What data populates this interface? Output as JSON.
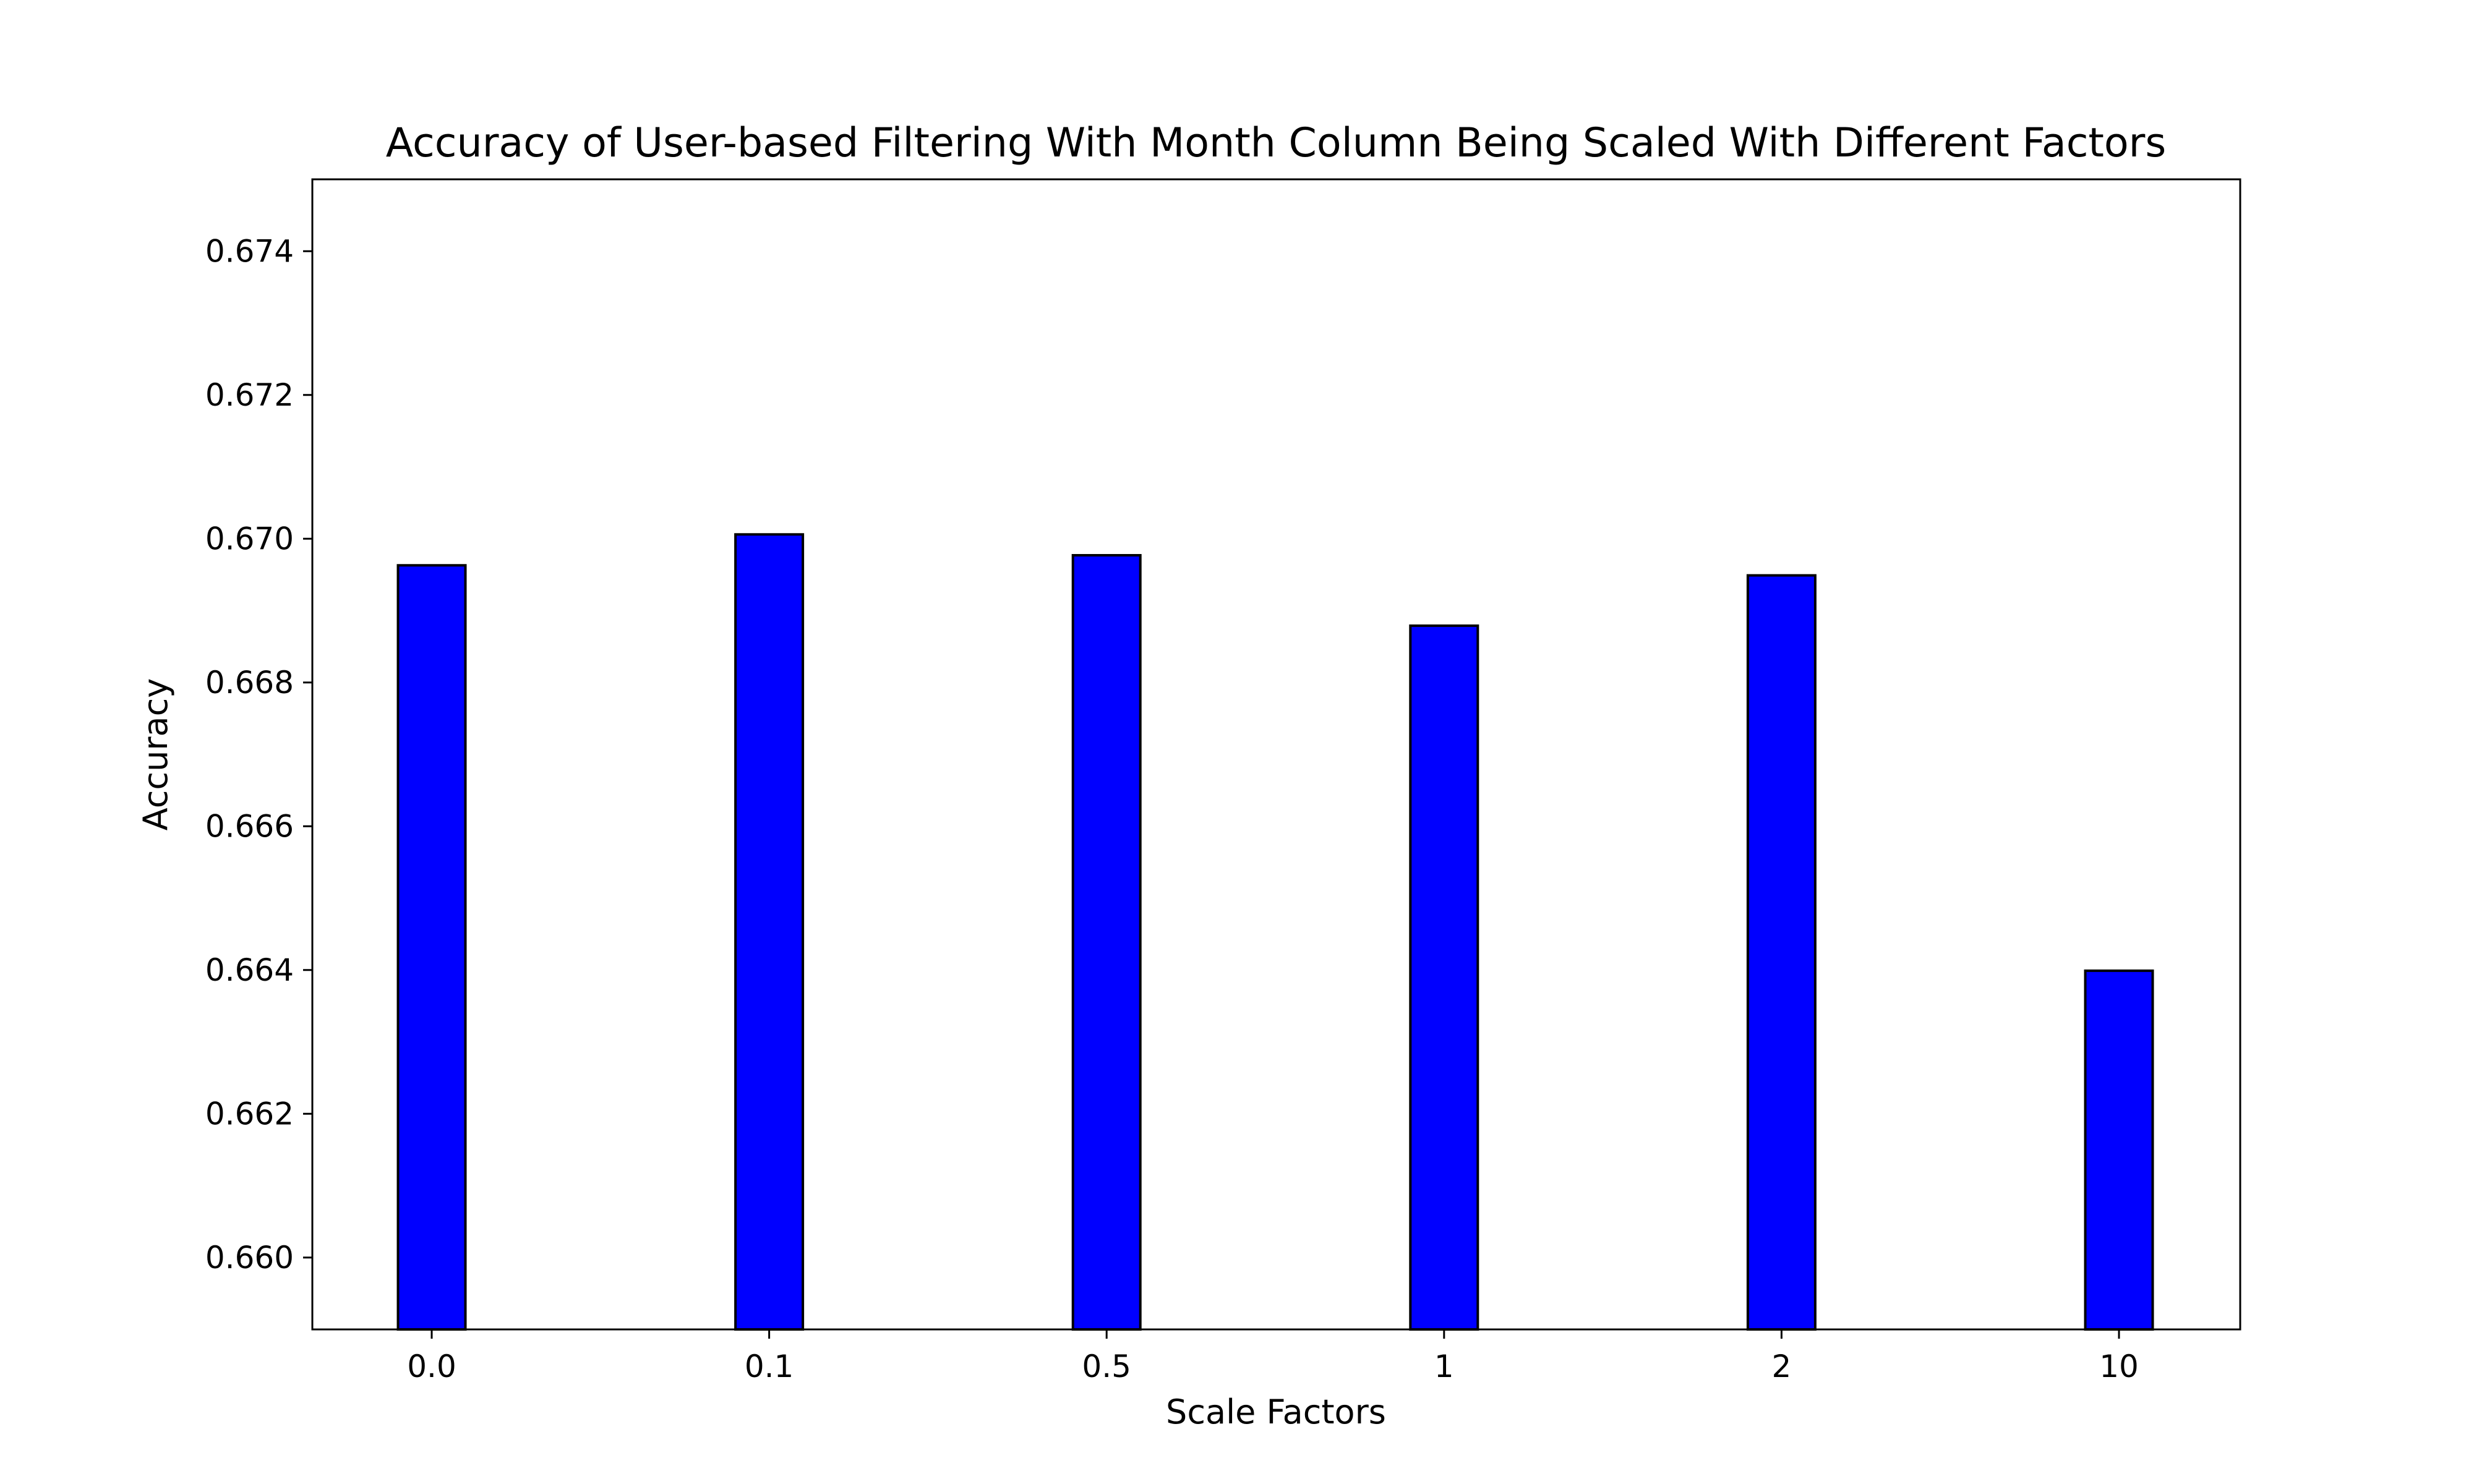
{
  "chart_data": {
    "type": "bar",
    "title": "Accuracy of User-based Filtering With Month Column Being Scaled With Different Factors",
    "xlabel": "Scale Factors",
    "ylabel": "Accuracy",
    "categories": [
      "0.0",
      "0.1",
      "0.5",
      "1",
      "2",
      "10"
    ],
    "values": [
      0.66963,
      0.67006,
      0.66977,
      0.66879,
      0.66949,
      0.66399
    ],
    "ylim": [
      0.659,
      0.675
    ],
    "yticks": [
      0.66,
      0.662,
      0.664,
      0.666,
      0.668,
      0.67,
      0.672,
      0.674
    ],
    "ytick_labels": [
      "0.660",
      "0.662",
      "0.664",
      "0.666",
      "0.668",
      "0.670",
      "0.672",
      "0.674"
    ],
    "bar_color": "#0000ff",
    "edge_color": "#000000",
    "grid": false
  }
}
